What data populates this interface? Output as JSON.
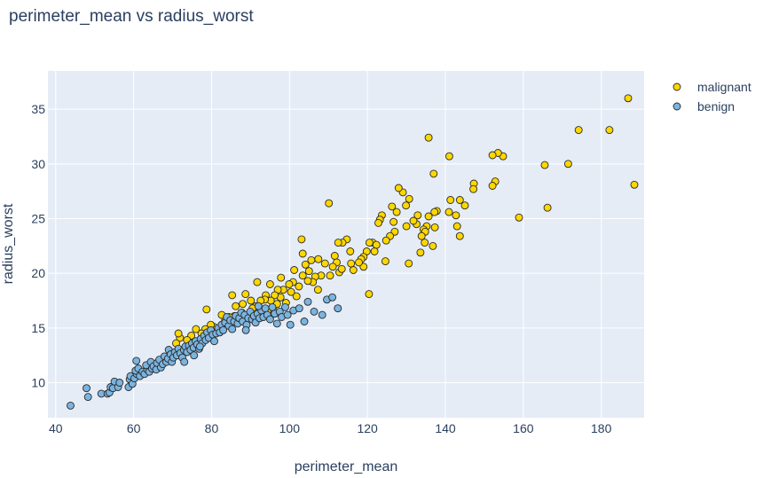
{
  "chart_data": {
    "type": "scatter",
    "title": "perimeter_mean vs radius_worst",
    "xlabel": "perimeter_mean",
    "ylabel": "radius_worst",
    "xlim": [
      38,
      191
    ],
    "ylim": [
      6.8,
      38.5
    ],
    "xticks": [
      40,
      60,
      80,
      100,
      120,
      140,
      160,
      180
    ],
    "yticks": [
      10,
      15,
      20,
      25,
      30,
      35
    ],
    "grid": true,
    "legend_position": "top-right",
    "series": [
      {
        "name": "malignant",
        "color": "#ffd700",
        "points": [
          [
            186.9,
            36.0
          ],
          [
            188.5,
            28.1
          ],
          [
            182.1,
            33.1
          ],
          [
            174.2,
            33.1
          ],
          [
            171.5,
            30.0
          ],
          [
            166.2,
            26.0
          ],
          [
            165.5,
            29.9
          ],
          [
            158.9,
            25.1
          ],
          [
            154.8,
            30.7
          ],
          [
            153.5,
            31.0
          ],
          [
            152.1,
            30.8
          ],
          [
            152.8,
            28.4
          ],
          [
            152.1,
            28.0
          ],
          [
            147.3,
            28.2
          ],
          [
            147.2,
            27.7
          ],
          [
            145.0,
            26.2
          ],
          [
            143.7,
            26.7
          ],
          [
            143.0,
            24.3
          ],
          [
            143.7,
            23.4
          ],
          [
            142.7,
            25.3
          ],
          [
            141.0,
            30.7
          ],
          [
            141.3,
            26.7
          ],
          [
            140.9,
            25.6
          ],
          [
            137.8,
            25.7
          ],
          [
            137.2,
            25.6
          ],
          [
            137.3,
            24.2
          ],
          [
            136.8,
            22.5
          ],
          [
            135.7,
            32.4
          ],
          [
            137.0,
            29.1
          ],
          [
            135.7,
            25.2
          ],
          [
            135.2,
            24.3
          ],
          [
            134.4,
            24.0
          ],
          [
            134.8,
            23.8
          ],
          [
            133.9,
            23.4
          ],
          [
            134.7,
            22.8
          ],
          [
            133.6,
            21.9
          ],
          [
            132.9,
            25.3
          ],
          [
            132.6,
            24.5
          ],
          [
            131.8,
            24.8
          ],
          [
            130.0,
            24.3
          ],
          [
            130.7,
            26.8
          ],
          [
            129.9,
            26.2
          ],
          [
            129.1,
            27.4
          ],
          [
            128.0,
            27.8
          ],
          [
            127.5,
            25.6
          ],
          [
            126.3,
            26.1
          ],
          [
            126.7,
            24.7
          ],
          [
            127.0,
            23.8
          ],
          [
            125.8,
            23.4
          ],
          [
            124.8,
            23.0
          ],
          [
            123.7,
            25.3
          ],
          [
            123.2,
            24.9
          ],
          [
            122.8,
            24.6
          ],
          [
            121.3,
            22.8
          ],
          [
            122.3,
            22.6
          ],
          [
            121.8,
            22.0
          ],
          [
            120.5,
            22.8
          ],
          [
            119.8,
            22.0
          ],
          [
            119.0,
            21.5
          ],
          [
            118.4,
            21.3
          ],
          [
            119.0,
            20.6
          ],
          [
            117.8,
            21.0
          ],
          [
            116.4,
            20.3
          ],
          [
            115.8,
            20.9
          ],
          [
            114.7,
            23.1
          ],
          [
            115.6,
            22.0
          ],
          [
            113.6,
            22.8
          ],
          [
            112.8,
            20.1
          ],
          [
            112.5,
            22.8
          ],
          [
            111.6,
            21.6
          ],
          [
            112.1,
            21.0
          ],
          [
            111.1,
            20.6
          ],
          [
            110.4,
            19.8
          ],
          [
            110.1,
            26.4
          ],
          [
            109.1,
            20.9
          ],
          [
            108.1,
            19.8
          ],
          [
            107.4,
            21.3
          ],
          [
            106.6,
            19.7
          ],
          [
            106.0,
            19.2
          ],
          [
            105.6,
            21.2
          ],
          [
            105.0,
            20.2
          ],
          [
            104.7,
            19.3
          ],
          [
            104.1,
            20.8
          ],
          [
            103.4,
            21.8
          ],
          [
            103.1,
            23.1
          ],
          [
            103.4,
            19.8
          ],
          [
            102.4,
            18.8
          ],
          [
            101.8,
            17.9
          ],
          [
            101.2,
            20.3
          ],
          [
            100.9,
            19.2
          ],
          [
            100.4,
            18.3
          ],
          [
            99.9,
            19.0
          ],
          [
            99.1,
            17.3
          ],
          [
            98.4,
            18.5
          ],
          [
            97.8,
            19.6
          ],
          [
            97.7,
            17.8
          ],
          [
            97.0,
            18.5
          ],
          [
            96.8,
            17.2
          ],
          [
            96.2,
            18.0
          ],
          [
            95.8,
            16.7
          ],
          [
            95.2,
            17.5
          ],
          [
            95.0,
            19.0
          ],
          [
            94.3,
            16.5
          ],
          [
            93.9,
            18.0
          ],
          [
            93.7,
            17.6
          ],
          [
            92.6,
            17.5
          ],
          [
            91.7,
            19.2
          ],
          [
            91.4,
            17.0
          ],
          [
            90.5,
            16.8
          ],
          [
            90.3,
            16.3
          ],
          [
            90.1,
            17.5
          ],
          [
            89.7,
            16.2
          ],
          [
            88.7,
            18.1
          ],
          [
            88.0,
            17.2
          ],
          [
            87.8,
            16.4
          ],
          [
            87.5,
            15.8
          ],
          [
            86.2,
            17.0
          ],
          [
            85.9,
            16.1
          ],
          [
            85.3,
            18.0
          ],
          [
            84.5,
            16.0
          ],
          [
            84.8,
            15.5
          ],
          [
            83.5,
            15.7
          ],
          [
            82.6,
            16.2
          ],
          [
            82.7,
            15.2
          ],
          [
            81.9,
            14.8
          ],
          [
            80.6,
            15.1
          ],
          [
            78.7,
            16.7
          ],
          [
            79.8,
            15.3
          ],
          [
            78.4,
            14.9
          ],
          [
            77.4,
            14.5
          ],
          [
            76.0,
            14.9
          ],
          [
            74.8,
            14.3
          ],
          [
            73.7,
            13.9
          ],
          [
            71.9,
            14.1
          ],
          [
            70.9,
            13.6
          ],
          [
            76.1,
            13.7
          ],
          [
            71.5,
            14.5
          ],
          [
            120.4,
            18.1
          ],
          [
            113.4,
            20.4
          ],
          [
            107.3,
            18.5
          ],
          [
            130.6,
            20.9
          ],
          [
            124.6,
            21.1
          ]
        ]
      },
      {
        "name": "benign",
        "color": "#7ab4e0",
        "points": [
          [
            43.8,
            7.9
          ],
          [
            47.9,
            9.5
          ],
          [
            48.3,
            8.7
          ],
          [
            51.7,
            9.0
          ],
          [
            53.3,
            9.0
          ],
          [
            53.8,
            9.1
          ],
          [
            54.1,
            9.6
          ],
          [
            54.7,
            9.5
          ],
          [
            55.1,
            10.1
          ],
          [
            56.0,
            9.6
          ],
          [
            56.4,
            10.0
          ],
          [
            58.7,
            9.6
          ],
          [
            59.0,
            10.3
          ],
          [
            59.7,
            9.9
          ],
          [
            59.2,
            10.6
          ],
          [
            60.2,
            10.4
          ],
          [
            60.8,
            10.8
          ],
          [
            60.5,
            11.1
          ],
          [
            61.6,
            10.6
          ],
          [
            61.2,
            11.3
          ],
          [
            62.3,
            11.0
          ],
          [
            62.8,
            10.8
          ],
          [
            63.5,
            11.2
          ],
          [
            63.2,
            11.6
          ],
          [
            64.0,
            11.0
          ],
          [
            64.7,
            11.3
          ],
          [
            64.4,
            11.9
          ],
          [
            65.1,
            11.5
          ],
          [
            65.8,
            11.2
          ],
          [
            66.0,
            11.8
          ],
          [
            66.6,
            12.1
          ],
          [
            67.0,
            11.4
          ],
          [
            67.5,
            11.7
          ],
          [
            67.9,
            12.4
          ],
          [
            68.4,
            11.9
          ],
          [
            68.8,
            12.2
          ],
          [
            69.0,
            13.0
          ],
          [
            69.5,
            12.6
          ],
          [
            69.8,
            11.9
          ],
          [
            70.2,
            12.3
          ],
          [
            70.6,
            12.8
          ],
          [
            71.1,
            12.5
          ],
          [
            71.5,
            13.1
          ],
          [
            72.0,
            12.7
          ],
          [
            72.5,
            12.3
          ],
          [
            72.9,
            13.0
          ],
          [
            73.3,
            13.3
          ],
          [
            73.7,
            12.8
          ],
          [
            74.2,
            13.4
          ],
          [
            74.6,
            13.0
          ],
          [
            75.0,
            13.6
          ],
          [
            75.4,
            13.2
          ],
          [
            75.9,
            13.8
          ],
          [
            76.3,
            13.5
          ],
          [
            76.8,
            13.1
          ],
          [
            77.2,
            14.0
          ],
          [
            77.6,
            13.6
          ],
          [
            78.1,
            14.3
          ],
          [
            78.5,
            13.9
          ],
          [
            78.9,
            14.6
          ],
          [
            79.3,
            14.1
          ],
          [
            79.8,
            14.8
          ],
          [
            80.3,
            14.4
          ],
          [
            80.7,
            13.8
          ],
          [
            81.2,
            14.5
          ],
          [
            81.7,
            15.0
          ],
          [
            82.1,
            14.6
          ],
          [
            82.6,
            15.3
          ],
          [
            83.0,
            14.8
          ],
          [
            83.5,
            15.5
          ],
          [
            83.9,
            16.0
          ],
          [
            84.4,
            15.2
          ],
          [
            84.8,
            15.7
          ],
          [
            85.3,
            14.9
          ],
          [
            85.8,
            15.6
          ],
          [
            86.2,
            16.1
          ],
          [
            86.7,
            15.4
          ],
          [
            87.1,
            15.9
          ],
          [
            87.6,
            16.4
          ],
          [
            88.0,
            15.6
          ],
          [
            88.5,
            16.2
          ],
          [
            89.0,
            15.3
          ],
          [
            89.4,
            15.9
          ],
          [
            89.9,
            16.5
          ],
          [
            90.4,
            15.8
          ],
          [
            90.9,
            16.1
          ],
          [
            91.3,
            15.5
          ],
          [
            91.8,
            16.3
          ],
          [
            92.3,
            15.9
          ],
          [
            92.8,
            16.6
          ],
          [
            93.3,
            16.0
          ],
          [
            93.8,
            16.8
          ],
          [
            94.3,
            16.2
          ],
          [
            95.0,
            15.8
          ],
          [
            95.6,
            16.9
          ],
          [
            96.2,
            16.3
          ],
          [
            96.8,
            15.4
          ],
          [
            97.5,
            16.5
          ],
          [
            98.0,
            16.0
          ],
          [
            98.9,
            16.9
          ],
          [
            99.5,
            16.2
          ],
          [
            100.2,
            15.3
          ],
          [
            101.0,
            16.6
          ],
          [
            102.5,
            16.8
          ],
          [
            103.8,
            15.6
          ],
          [
            104.7,
            17.4
          ],
          [
            106.3,
            16.5
          ],
          [
            108.4,
            16.2
          ],
          [
            109.6,
            17.6
          ],
          [
            111.0,
            17.8
          ],
          [
            112.4,
            16.8
          ],
          [
            60.7,
            12.0
          ],
          [
            73.0,
            11.9
          ],
          [
            75.5,
            12.5
          ],
          [
            77.0,
            13.3
          ],
          [
            88.8,
            14.8
          ],
          [
            92.0,
            17.0
          ]
        ]
      }
    ]
  }
}
